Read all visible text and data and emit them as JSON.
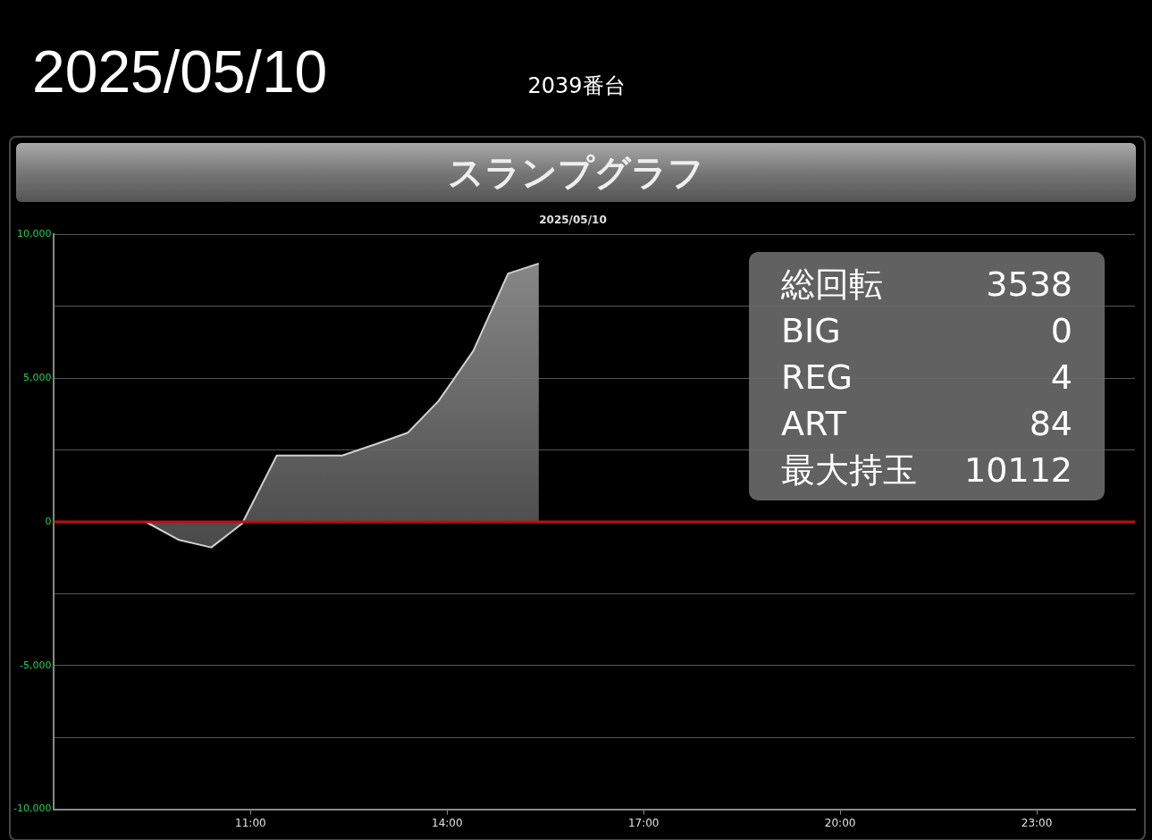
{
  "chart_data": {
    "type": "area",
    "title": "2025/05/10",
    "subtitle": "2039番台",
    "annotations": [
      "スランプグラフ",
      "2025/05/10",
      "総回転",
      "3538",
      "BIG",
      "0",
      "REG",
      "4",
      "ART",
      "84",
      "最大持玉",
      "10112"
    ],
    "x": [
      8.03,
      9.4,
      9.91,
      10.4,
      10.87,
      11.4,
      12.4,
      12.93,
      13.4,
      13.87,
      14.4,
      14.93,
      15.4
    ],
    "series": [
      {
        "color": "#d0d0d0",
        "values": [
          0,
          0,
          -630,
          -890,
          -60,
          2310,
          2310,
          2720,
          3100,
          4210,
          5950,
          8640,
          8990
        ]
      }
    ],
    "xlim": [
      8,
      24.5
    ],
    "xticks": [
      {
        "value": 11,
        "label": "11:00"
      },
      {
        "value": 14,
        "label": "14:00"
      },
      {
        "value": 17,
        "label": "17:00"
      },
      {
        "value": 20,
        "label": "20:00"
      },
      {
        "value": 23,
        "label": "23:00"
      }
    ],
    "ylim": [
      -10000,
      10000
    ],
    "yticks": [
      {
        "value": -10000,
        "label": "-10,000"
      },
      {
        "value": -7500,
        "label": null
      },
      {
        "value": -5000,
        "label": "-5,000"
      },
      {
        "value": -2500,
        "label": null
      },
      0,
      {
        "value": 2500,
        "label": null
      },
      {
        "value": 5000,
        "label": "5,000"
      },
      {
        "value": 7500,
        "label": null
      },
      {
        "value": 10000,
        "label": "10,000"
      }
    ],
    "ref_lines": [
      {
        "axis": "y",
        "value": 0,
        "color": "#c01010"
      }
    ],
    "grid": "y",
    "legend": false,
    "marker": "none",
    "line_style": "solid"
  }
}
